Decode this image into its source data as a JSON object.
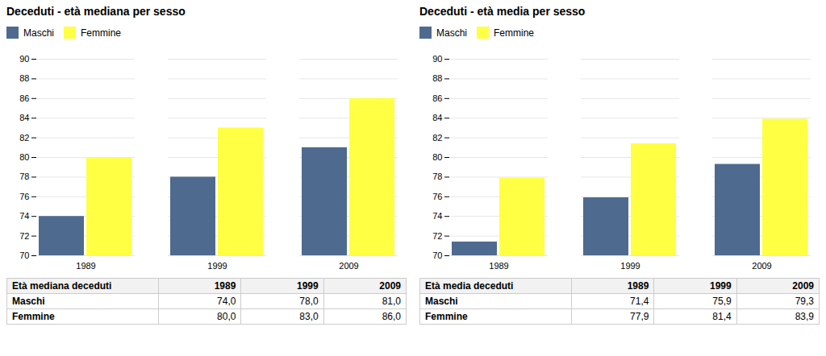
{
  "chart_data": [
    {
      "type": "bar",
      "title": "Deceduti - età mediana per sesso",
      "categories": [
        "1989",
        "1999",
        "2009"
      ],
      "series": [
        {
          "name": "Maschi",
          "color": "#4f6a8f",
          "values": [
            74.0,
            78.0,
            81.0
          ],
          "value_labels": [
            "74,0",
            "78,0",
            "81,0"
          ]
        },
        {
          "name": "Femmine",
          "color": "#ffff44",
          "values": [
            80.0,
            83.0,
            86.0
          ],
          "value_labels": [
            "80,0",
            "83,0",
            "86,0"
          ]
        }
      ],
      "ylim": [
        70,
        90
      ],
      "yticks": [
        70,
        72,
        74,
        76,
        78,
        80,
        82,
        84,
        86,
        88,
        90
      ],
      "grid": true,
      "legend": "upper left",
      "table_label": "Età mediana deceduti"
    },
    {
      "type": "bar",
      "title": "Deceduti - età media per sesso",
      "categories": [
        "1989",
        "1999",
        "2009"
      ],
      "series": [
        {
          "name": "Maschi",
          "color": "#4f6a8f",
          "values": [
            71.4,
            75.9,
            79.3
          ],
          "value_labels": [
            "71,4",
            "75,9",
            "79,3"
          ]
        },
        {
          "name": "Femmine",
          "color": "#ffff44",
          "values": [
            77.9,
            81.4,
            83.9
          ],
          "value_labels": [
            "77,9",
            "81,4",
            "83,9"
          ]
        }
      ],
      "ylim": [
        70,
        90
      ],
      "yticks": [
        70,
        72,
        74,
        76,
        78,
        80,
        82,
        84,
        86,
        88,
        90
      ],
      "grid": true,
      "legend": "upper left",
      "table_label": "Età media deceduti"
    }
  ]
}
